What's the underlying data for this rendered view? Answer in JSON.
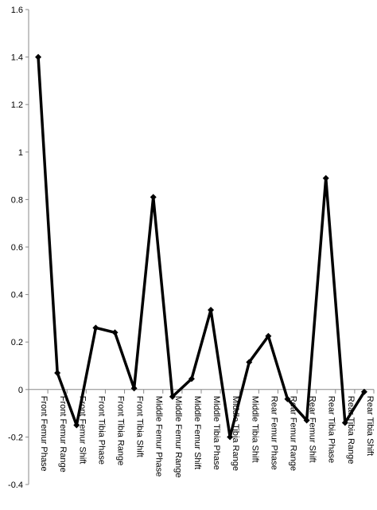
{
  "chart_data": {
    "type": "line",
    "title": "",
    "xlabel": "",
    "ylabel": "",
    "ylim": [
      -0.4,
      1.6
    ],
    "ytick_step": 0.2,
    "yticks": [
      "-0.4",
      "-0.2",
      "0",
      "0.2",
      "0.4",
      "0.6",
      "0.8",
      "1",
      "1.2",
      "1.4",
      "1.6"
    ],
    "grid": false,
    "legend": "none",
    "line_color": "#000000",
    "categories": [
      "Front Femur Phase",
      "Front Femur Range",
      "Front Femur Shift",
      "Front Tibia Phase",
      "Front Tibia Range",
      "Front Tibia Shift",
      "Middle Femur Phase",
      "Middle Femur Range",
      "Middle Femur Shift",
      "Middle Tibia Phase",
      "Middle Tibia Range",
      "Middle Tibia Shift",
      "Rear Femur Phase",
      "Rear Femur Range",
      "Rear Femur Shift",
      "Rear Tibia Phase",
      "Rear Tibia Range",
      "Rear Tibia Shift"
    ],
    "series": [
      {
        "values": [
          1.4,
          0.07,
          -0.15,
          0.26,
          0.24,
          0.005,
          0.81,
          -0.03,
          0.045,
          0.335,
          -0.2,
          0.115,
          0.225,
          -0.04,
          -0.13,
          0.89,
          -0.14,
          -0.01
        ]
      }
    ]
  }
}
